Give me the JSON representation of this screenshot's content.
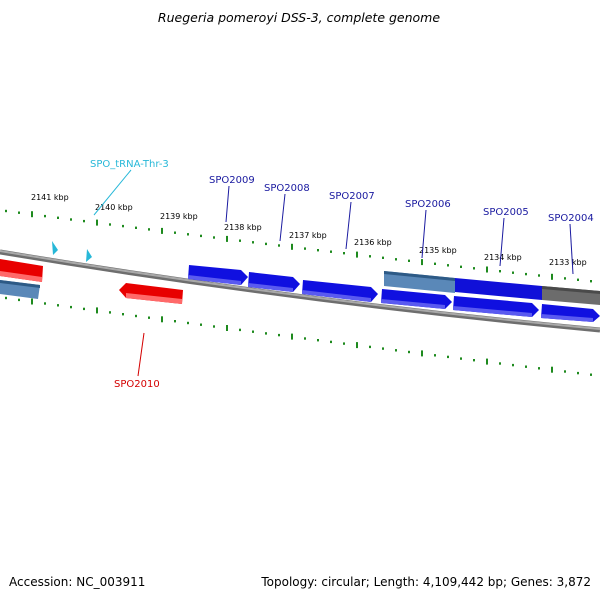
{
  "title": "Ruegeria pomeroyi DSS-3, complete genome",
  "footer": {
    "accession": "Accession: NC_003911",
    "summary": "Topology: circular; Length: 4,109,442 bp; Genes: 3,872"
  },
  "colors": {
    "forward_gene": "#1010e0",
    "reverse_gene": "#e80000",
    "trna": "#27b8d8",
    "ticks": "#1e8a1e",
    "backbone": "#8a8a8a",
    "blue_label": "#1a1aa0",
    "red_label": "#d40000"
  },
  "kbp_labels": [
    "2141 kbp",
    "2140 kbp",
    "2139 kbp",
    "2138 kbp",
    "2137 kbp",
    "2136 kbp",
    "2135 kbp",
    "2134 kbp",
    "2133 kbp"
  ],
  "genes": [
    {
      "name": "SPO2009",
      "strand": "+"
    },
    {
      "name": "SPO2008",
      "strand": "+"
    },
    {
      "name": "SPO2007",
      "strand": "+"
    },
    {
      "name": "SPO2006",
      "strand": "+"
    },
    {
      "name": "SPO2005",
      "strand": "+"
    },
    {
      "name": "SPO2004",
      "strand": "+"
    },
    {
      "name": "SPO2010",
      "strand": "-"
    }
  ],
  "trna": {
    "name": "SPO_tRNA-Thr-3"
  }
}
